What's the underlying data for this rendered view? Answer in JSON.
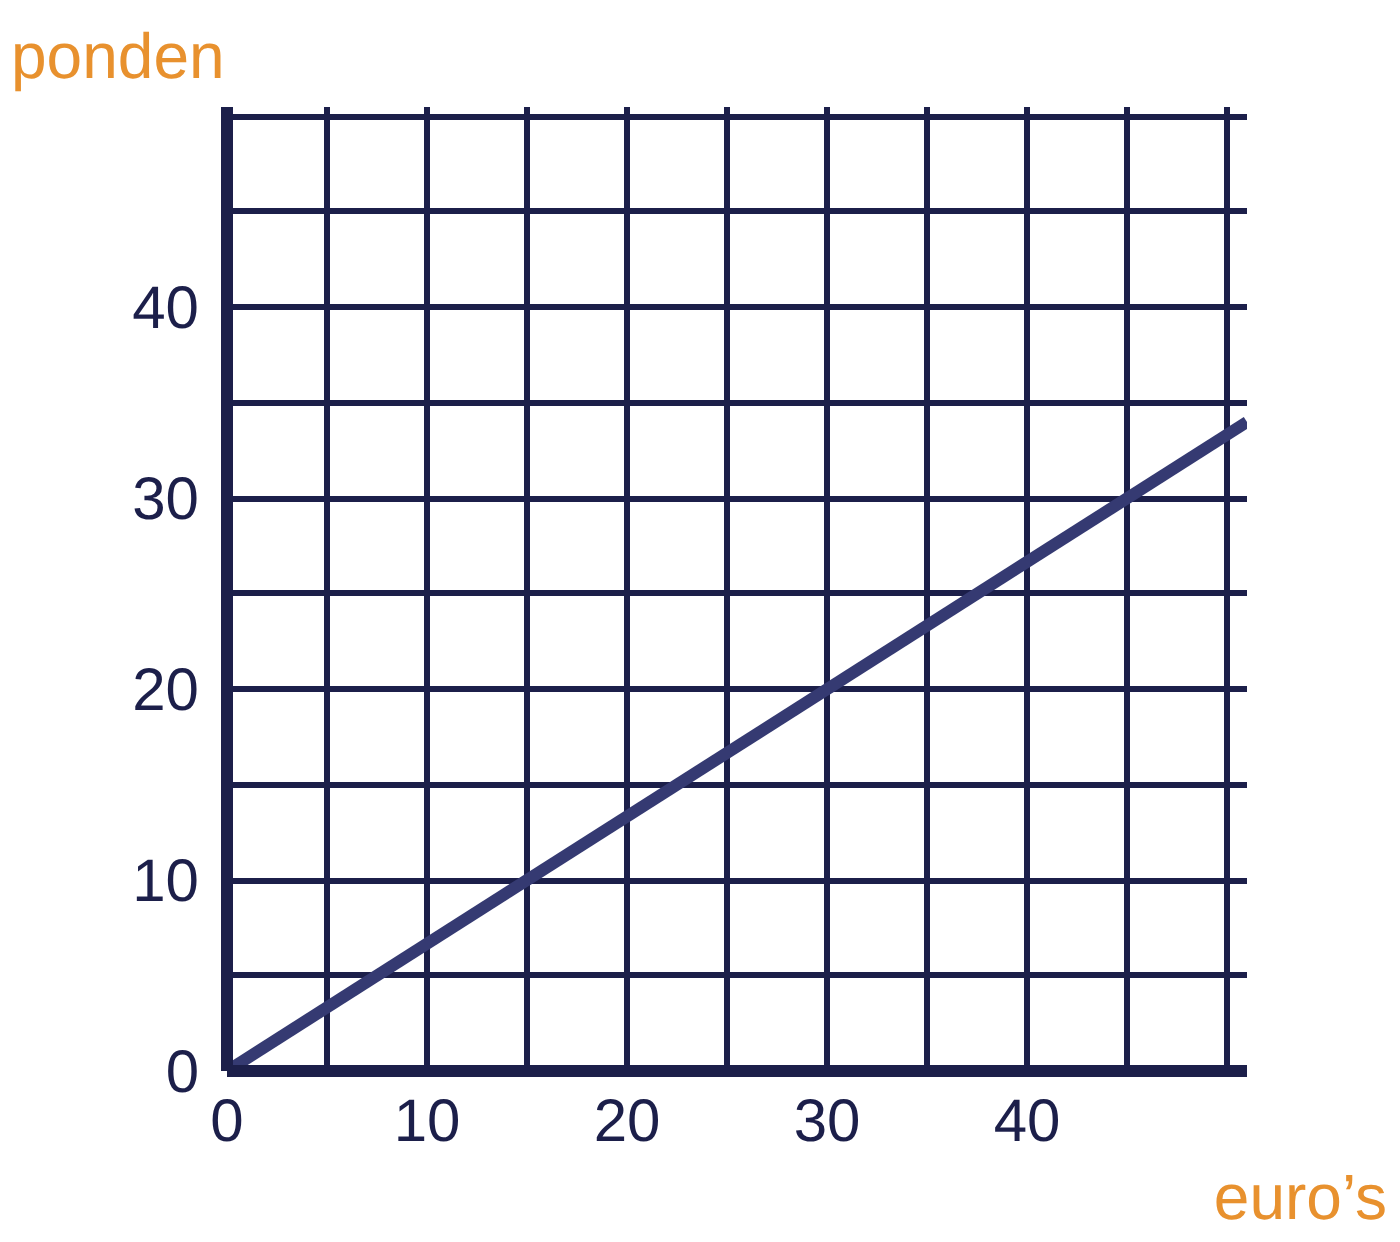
{
  "chart_data": {
    "type": "line",
    "xlabel": "euro’s",
    "ylabel": "ponden",
    "x": [
      0,
      51
    ],
    "series": [
      {
        "color": "#353a72",
        "values": [
          0,
          34
        ]
      }
    ],
    "xlim": [
      0,
      51
    ],
    "ylim": [
      0,
      50.5
    ],
    "xticks": [
      0,
      {
        "value": 5,
        "label": null
      },
      10,
      {
        "value": 15,
        "label": null
      },
      20,
      {
        "value": 25,
        "label": null
      },
      30,
      {
        "value": 35,
        "label": null
      },
      40,
      {
        "value": 45,
        "label": null
      },
      {
        "value": 50,
        "label": null
      }
    ],
    "yticks": [
      0,
      {
        "value": 5,
        "label": null
      },
      10,
      {
        "value": 15,
        "label": null
      },
      20,
      {
        "value": 25,
        "label": null
      },
      30,
      {
        "value": 35,
        "label": null
      },
      40,
      {
        "value": 45,
        "label": null
      },
      {
        "value": 50,
        "label": null
      }
    ],
    "grid": true,
    "marker": "none",
    "line_style": "solid"
  }
}
